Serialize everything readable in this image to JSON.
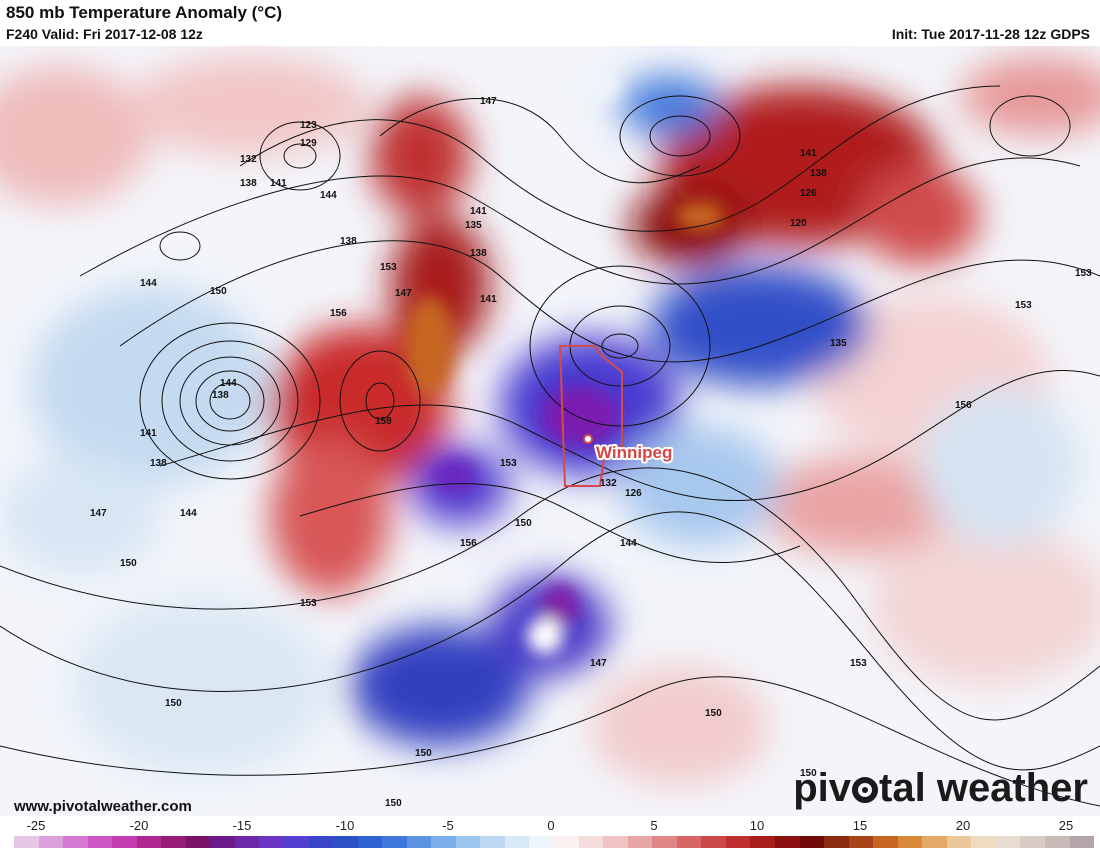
{
  "header": {
    "title": "850 mb Temperature Anomaly (°C)",
    "valid": "F240 Valid: Fri 2017-12-08 12z",
    "init": "Init: Tue 2017-11-28 12z GDPS"
  },
  "map": {
    "city": {
      "name": "Winnipeg"
    },
    "contour_labels": [
      "123",
      "129",
      "132",
      "138",
      "141",
      "144",
      "147",
      "150",
      "153",
      "156",
      "159",
      "126",
      "120",
      "135"
    ]
  },
  "footer": {
    "url": "www.pivotalweather.com",
    "brand_pre": "piv",
    "brand_post": "tal weather"
  },
  "scale": {
    "labels": [
      "-25",
      "-20",
      "-15",
      "-10",
      "-5",
      "0",
      "5",
      "10",
      "15",
      "20",
      "25"
    ],
    "colors": [
      "#e6c6e6",
      "#dba0dc",
      "#d47ad2",
      "#cc56c4",
      "#c23bb0",
      "#b0278f",
      "#951c77",
      "#7a1468",
      "#6a1a8a",
      "#6b28a8",
      "#6a34c4",
      "#5440d0",
      "#3a46c8",
      "#2c50c8",
      "#2e62d4",
      "#3f78dc",
      "#5d94e2",
      "#7aaee8",
      "#9cc6ee",
      "#bcd8f2",
      "#d8e8f6",
      "#eef4fa",
      "#fbf0f0",
      "#f6dcdc",
      "#f0c4c4",
      "#e8a6a6",
      "#e08686",
      "#d86666",
      "#cc4848",
      "#bf2e2e",
      "#a81c1c",
      "#8c1010",
      "#720a0a",
      "#8a2a0e",
      "#a84418",
      "#c66622",
      "#d88a3a",
      "#e2aa66",
      "#eac89a",
      "#efdcc0",
      "#e8dcd0",
      "#d8ccc4",
      "#c8bab6",
      "#b4a6a8"
    ]
  }
}
